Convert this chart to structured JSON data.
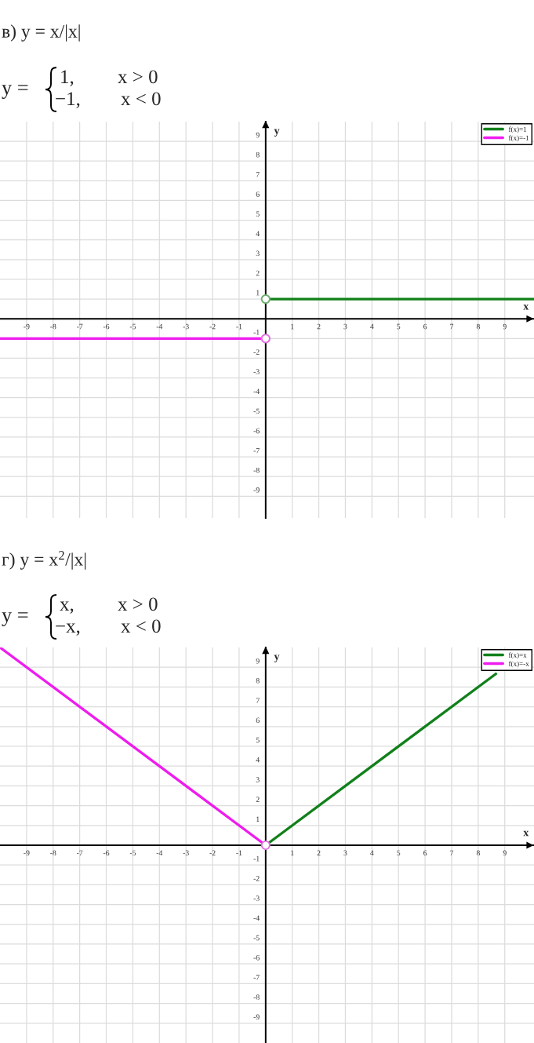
{
  "chart_data": [
    {
      "type": "line",
      "title": "в) y = x/|x|",
      "subtitle": "y =",
      "annotations": [
        "1,",
        "x > 0",
        "−1,",
        "x < 0"
      ],
      "xlabel": "x",
      "ylabel": "y",
      "xlim": [
        -10,
        10.1
      ],
      "ylim": [
        -10.1,
        10
      ],
      "xticks": [
        -9,
        -8,
        -7,
        -6,
        -5,
        -4,
        -3,
        -2,
        -1,
        1,
        2,
        3,
        4,
        5,
        6,
        7,
        8,
        9
      ],
      "yticks": [
        -9,
        -8,
        -7,
        -6,
        -5,
        -4,
        -3,
        -2,
        -1,
        1,
        2,
        3,
        4,
        5,
        6,
        7,
        8,
        9
      ],
      "grid": true,
      "legend": "top right",
      "series": [
        {
          "name": "f(x)=1",
          "color": "#11801a",
          "x": [
            0,
            10.1
          ],
          "values": [
            1,
            1
          ]
        },
        {
          "name": "f(x)=-1",
          "color": "#ee1cee",
          "x": [
            -10,
            0
          ],
          "values": [
            -1,
            -1
          ]
        },
        {
          "type": "scatter",
          "color": "#6fae6f",
          "marker": "circle",
          "x": [
            0
          ],
          "values": [
            1
          ]
        },
        {
          "type": "scatter",
          "color": "#e070e0",
          "marker": "circle",
          "x": [
            0
          ],
          "values": [
            -1
          ]
        }
      ]
    },
    {
      "type": "line",
      "title": "г) y = x$^{2}$/|x|",
      "subtitle": "y =",
      "annotations": [
        "x,",
        "x > 0",
        "−x,",
        "x < 0"
      ],
      "xlabel": "x",
      "ylabel": "y",
      "xlim": [
        -10,
        10.1
      ],
      "ylim": [
        -10,
        10
      ],
      "xticks": [
        -9,
        -8,
        -7,
        -6,
        -5,
        -4,
        -3,
        -2,
        -1,
        1,
        2,
        3,
        4,
        5,
        6,
        7,
        8,
        9
      ],
      "yticks": [
        -9,
        -8,
        -7,
        -6,
        -5,
        -4,
        -3,
        -2,
        -1,
        1,
        2,
        3,
        4,
        5,
        6,
        7,
        8,
        9
      ],
      "grid": true,
      "legend": "top right",
      "series": [
        {
          "name": "f(x)=x",
          "color": "#11801a",
          "x": [
            0,
            8.7
          ],
          "values": [
            0,
            8.7
          ]
        },
        {
          "name": "f(x)=-x",
          "color": "#ee1cee",
          "x": [
            -10,
            0
          ],
          "values": [
            10,
            0
          ]
        },
        {
          "type": "scatter",
          "color": "#e070e0",
          "marker": "circle",
          "x": [
            0
          ],
          "values": [
            0
          ]
        }
      ]
    }
  ]
}
